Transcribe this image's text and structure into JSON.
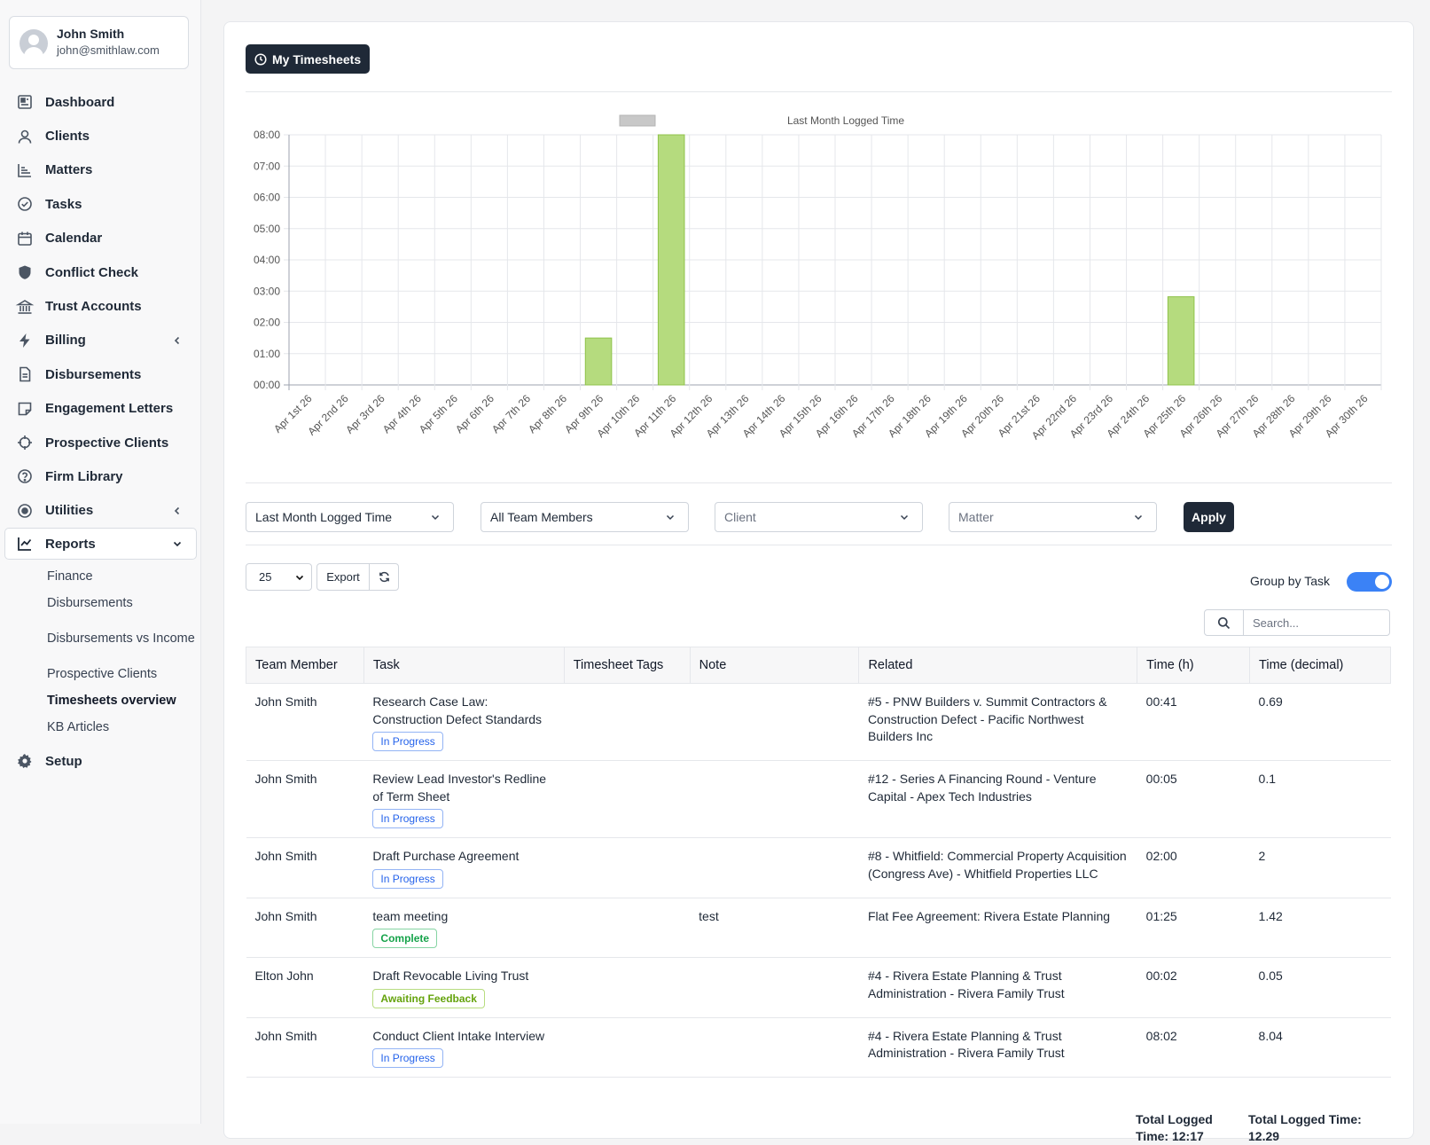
{
  "user": {
    "name": "John Smith",
    "email": "john@smithlaw.com"
  },
  "nav": {
    "items": [
      {
        "label": "Dashboard",
        "icon": "dashboard-icon"
      },
      {
        "label": "Clients",
        "icon": "user-icon"
      },
      {
        "label": "Matters",
        "icon": "chart-icon"
      },
      {
        "label": "Tasks",
        "icon": "check-circle-icon"
      },
      {
        "label": "Calendar",
        "icon": "calendar-icon"
      },
      {
        "label": "Conflict Check",
        "icon": "shield-icon"
      },
      {
        "label": "Trust Accounts",
        "icon": "bank-icon"
      },
      {
        "label": "Billing",
        "icon": "bolt-icon"
      },
      {
        "label": "Disbursements",
        "icon": "document-icon"
      },
      {
        "label": "Engagement Letters",
        "icon": "note-icon"
      },
      {
        "label": "Prospective Clients",
        "icon": "crosshair-icon"
      },
      {
        "label": "Firm Library",
        "icon": "question-circle-icon"
      },
      {
        "label": "Utilities",
        "icon": "radio-icon"
      },
      {
        "label": "Reports",
        "icon": "line-chart-icon"
      },
      {
        "label": "Setup",
        "icon": "gear-icon"
      }
    ],
    "reports_sub": [
      "Finance",
      "Disbursements",
      "Disbursements vs Income",
      "Prospective Clients",
      "Timesheets overview",
      "KB Articles"
    ]
  },
  "header": {
    "my_timesheets_label": "My Timesheets"
  },
  "chart_data": {
    "type": "bar",
    "title": "Last Month Logged Time",
    "categories": [
      "Apr 1st 26",
      "Apr 2nd 26",
      "Apr 3rd 26",
      "Apr 4th 26",
      "Apr 5th 26",
      "Apr 6th 26",
      "Apr 7th 26",
      "Apr 8th 26",
      "Apr 9th 26",
      "Apr 10th 26",
      "Apr 11th 26",
      "Apr 12th 26",
      "Apr 13th 26",
      "Apr 14th 26",
      "Apr 15th 26",
      "Apr 16th 26",
      "Apr 17th 26",
      "Apr 18th 26",
      "Apr 19th 26",
      "Apr 20th 26",
      "Apr 21st 26",
      "Apr 22nd 26",
      "Apr 23rd 26",
      "Apr 24th 26",
      "Apr 25th 26",
      "Apr 26th 26",
      "Apr 27th 26",
      "Apr 28th 26",
      "Apr 29th 26",
      "Apr 30th 26"
    ],
    "values": [
      0,
      0,
      0,
      0,
      0,
      0,
      0,
      0,
      1.5,
      0,
      8.0,
      0,
      0,
      0,
      0,
      0,
      0,
      0,
      0,
      0,
      0,
      0,
      0,
      0,
      2.82,
      0,
      0,
      0,
      0,
      0
    ],
    "y_ticks": [
      "00:00",
      "01:00",
      "02:00",
      "03:00",
      "04:00",
      "05:00",
      "06:00",
      "07:00",
      "08:00"
    ],
    "ylim": [
      0,
      8
    ],
    "grid": true,
    "bar_color": "#b5db7e",
    "bar_border": "#8fc34a",
    "legend_swatch_color": "#c8c8c8",
    "legend": "top"
  },
  "filters": {
    "range": "Last Month Logged Time",
    "team": "All Team Members",
    "client_placeholder": "Client",
    "matter_placeholder": "Matter",
    "apply_label": "Apply"
  },
  "table_controls": {
    "page_size": "25",
    "export_label": "Export",
    "group_label": "Group by Task",
    "group_on": true,
    "search_placeholder": "Search..."
  },
  "table": {
    "headers": [
      "Team Member",
      "Task",
      "Timesheet Tags",
      "Note",
      "Related",
      "Time (h)",
      "Time (decimal)"
    ],
    "rows": [
      {
        "member": "John Smith",
        "task": "Research Case Law: Construction Defect Standards",
        "status": "In Progress",
        "status_kind": "progress",
        "tags": "",
        "note": "",
        "related": "#5 - PNW Builders v. Summit Contractors & Construction Defect - Pacific Northwest Builders Inc",
        "time_h": "00:41",
        "time_dec": "0.69"
      },
      {
        "member": "John Smith",
        "task": "Review Lead Investor's Redline of Term Sheet",
        "status": "In Progress",
        "status_kind": "progress",
        "tags": "",
        "note": "",
        "related": "#12 - Series A Financing Round - Venture Capital - Apex Tech Industries",
        "time_h": "00:05",
        "time_dec": "0.1"
      },
      {
        "member": "John Smith",
        "task": "Draft Purchase Agreement",
        "status": "In Progress",
        "status_kind": "progress",
        "tags": "",
        "note": "",
        "related": "#8 - Whitfield: Commercial Property Acquisition (Congress Ave) - Whitfield Properties LLC",
        "time_h": "02:00",
        "time_dec": "2"
      },
      {
        "member": "John Smith",
        "task": "team meeting",
        "status": "Complete",
        "status_kind": "complete",
        "tags": "",
        "note": "test",
        "related": "Flat Fee Agreement: Rivera Estate Planning",
        "time_h": "01:25",
        "time_dec": "1.42"
      },
      {
        "member": "Elton John",
        "task": "Draft Revocable Living Trust",
        "status": "Awaiting Feedback",
        "status_kind": "awaiting",
        "tags": "",
        "note": "",
        "related": "#4 - Rivera Estate Planning & Trust Administration - Rivera Family Trust",
        "time_h": "00:02",
        "time_dec": "0.05"
      },
      {
        "member": "John Smith",
        "task": "Conduct Client Intake Interview",
        "status": "In Progress",
        "status_kind": "progress",
        "tags": "",
        "note": "",
        "related": "#4 - Rivera Estate Planning & Trust Administration - Rivera Family Trust",
        "time_h": "08:02",
        "time_dec": "8.04"
      }
    ],
    "totals": {
      "time_h": "Total Logged Time: 12:17",
      "time_dec": "Total Logged Time: 12.29"
    }
  }
}
